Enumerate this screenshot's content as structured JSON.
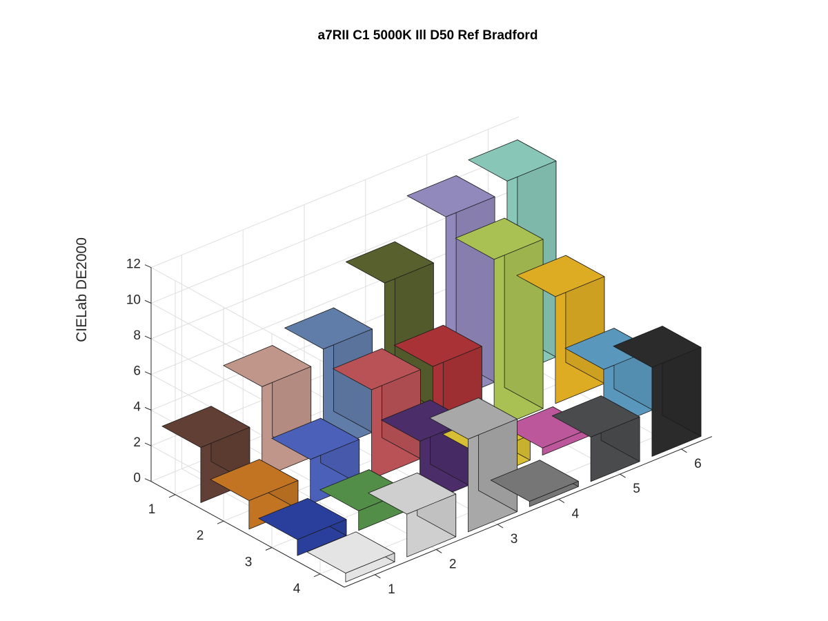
{
  "chart_data": {
    "type": "bar3d",
    "title": "a7RII C1 5000K Ill D50 Ref Bradford",
    "xlabel": "",
    "ylabel": "",
    "zlabel": "CIELab DE2000",
    "zlim": [
      0,
      12
    ],
    "z_ticks": [
      "0",
      "2",
      "4",
      "6",
      "8",
      "10",
      "12"
    ],
    "rows": [
      "1",
      "2",
      "3",
      "4"
    ],
    "columns": [
      "1",
      "2",
      "3",
      "4",
      "5",
      "6"
    ],
    "grid": true,
    "values": [
      [
        3.1,
        5.1,
        5.8,
        8.1,
        10.4,
        11.0
      ],
      [
        1.6,
        2.5,
        5.0,
        4.9,
        9.5,
        6.0
      ],
      [
        0.9,
        1.1,
        3.6,
        1.4,
        0.4,
        3.4
      ],
      [
        0.5,
        2.4,
        5.2,
        0.3,
        2.5,
        5.0
      ]
    ],
    "colors": [
      [
        "#623f34",
        "#c0958a",
        "#607ca8",
        "#58602d",
        "#9188bb",
        "#88c6b8"
      ],
      [
        "#c27422",
        "#4b60b8",
        "#b95257",
        "#a93237",
        "#a9c153",
        "#deac23"
      ],
      [
        "#2a3f9c",
        "#538e48",
        "#4b2d6a",
        "#d8be34",
        "#bc579b",
        "#5998bc"
      ],
      [
        "#e4e4e4",
        "#cfcfcf",
        "#a8a8a8",
        "#767676",
        "#4a4b4d",
        "#2a2b2a"
      ]
    ]
  }
}
